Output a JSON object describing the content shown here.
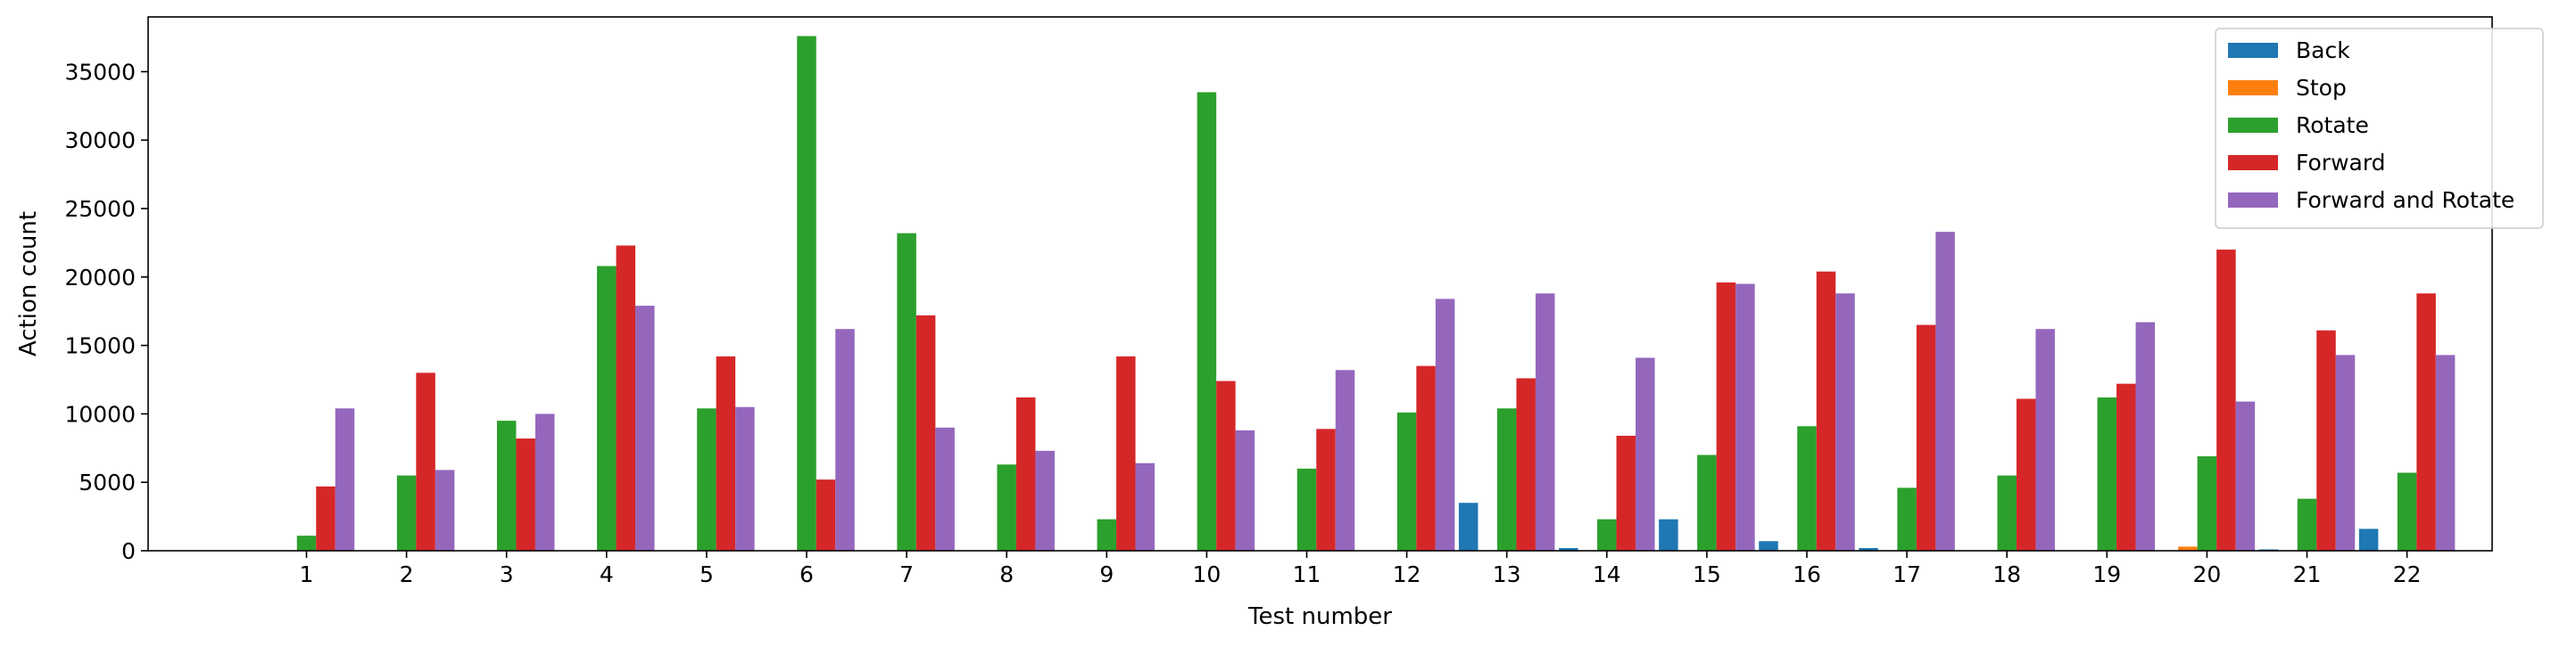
{
  "chart_data": {
    "type": "bar",
    "xlabel": "Test number",
    "ylabel": "Action count",
    "categories": [
      "1",
      "2",
      "3",
      "4",
      "5",
      "6",
      "7",
      "8",
      "9",
      "10",
      "11",
      "12",
      "13",
      "14",
      "15",
      "16",
      "17",
      "18",
      "19",
      "20",
      "21",
      "22"
    ],
    "ylim": [
      0,
      39000
    ],
    "yticks": [
      0,
      5000,
      10000,
      15000,
      20000,
      25000,
      30000,
      35000
    ],
    "grid": false,
    "legend_position": "top-right",
    "series": [
      {
        "name": "Back",
        "color": "#1f77b4",
        "values": [
          0,
          0,
          0,
          0,
          0,
          0,
          0,
          0,
          0,
          0,
          0,
          0,
          3500,
          200,
          2300,
          700,
          200,
          0,
          0,
          0,
          100,
          1600
        ]
      },
      {
        "name": "Stop",
        "color": "#ff7f0e",
        "values": [
          0,
          0,
          0,
          0,
          0,
          0,
          0,
          0,
          0,
          0,
          0,
          0,
          0,
          0,
          0,
          0,
          0,
          0,
          0,
          300,
          0,
          0
        ]
      },
      {
        "name": "Rotate",
        "color": "#2ca02c",
        "values": [
          1100,
          5500,
          9500,
          20800,
          10400,
          37600,
          23200,
          6300,
          2300,
          33500,
          6000,
          10100,
          10400,
          2300,
          7000,
          9100,
          4600,
          5500,
          11200,
          6900,
          3800,
          5700
        ]
      },
      {
        "name": "Forward",
        "color": "#d62728",
        "values": [
          4700,
          13000,
          8200,
          22300,
          14200,
          5200,
          17200,
          11200,
          14200,
          12400,
          8900,
          13500,
          12600,
          8400,
          19600,
          20400,
          16500,
          11100,
          12200,
          22000,
          16100,
          18800
        ]
      },
      {
        "name": "Forward and Rotate",
        "color": "#9467bd",
        "values": [
          10400,
          5900,
          10000,
          17900,
          10500,
          16200,
          9000,
          7300,
          6400,
          8800,
          13200,
          18400,
          18800,
          14100,
          19500,
          18800,
          23300,
          16200,
          16700,
          10900,
          14300,
          14300
        ]
      }
    ]
  }
}
